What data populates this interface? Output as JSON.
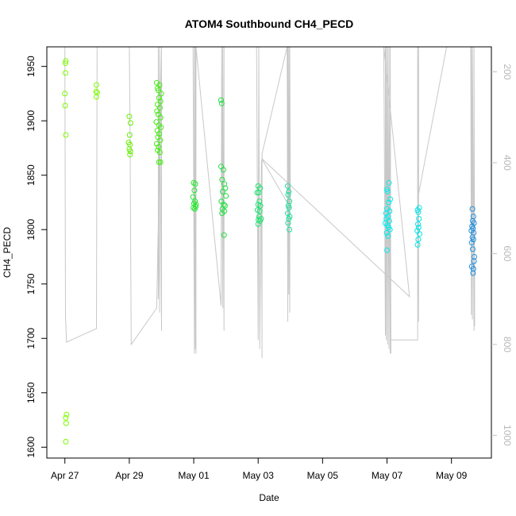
{
  "chart_data": {
    "type": "scatter",
    "title": "ATOM4 Southbound CH4_PECD",
    "xlabel": "Date",
    "ylabel": "CH4_PECD",
    "x_ticks": [
      "Apr 27",
      "Apr 29",
      "May 01",
      "May 03",
      "May 05",
      "May 07",
      "May 09"
    ],
    "x_tick_days": [
      0,
      2,
      4,
      6,
      8,
      10,
      12
    ],
    "xlim_days": [
      -0.56,
      13.24
    ],
    "ylim": [
      1590,
      1968
    ],
    "y_ticks": [
      1600,
      1650,
      1700,
      1750,
      1800,
      1850,
      1900,
      1950
    ],
    "right_axis": {
      "ticks": [
        200,
        400,
        600,
        800,
        1000
      ],
      "lim": [
        1050,
        145
      ],
      "color": "#c0c0c0"
    },
    "points": [
      {
        "d": 0.02,
        "v": 1953,
        "c": "#7cfc00"
      },
      {
        "d": 0.03,
        "v": 1955,
        "c": "#7cfc00"
      },
      {
        "d": 0.02,
        "v": 1944,
        "c": "#7cfc00"
      },
      {
        "d": 0.0,
        "v": 1925,
        "c": "#7cfc00"
      },
      {
        "d": 0.01,
        "v": 1914,
        "c": "#7cfc00"
      },
      {
        "d": 0.03,
        "v": 1887,
        "c": "#7cfc00"
      },
      {
        "d": 0.05,
        "v": 1630,
        "c": "#7cfc00"
      },
      {
        "d": 0.03,
        "v": 1627,
        "c": "#7cfc00"
      },
      {
        "d": 0.04,
        "v": 1622,
        "c": "#7cfc00"
      },
      {
        "d": 0.03,
        "v": 1605,
        "c": "#7cfc00"
      },
      {
        "d": 0.98,
        "v": 1933,
        "c": "#7cfc00"
      },
      {
        "d": 0.97,
        "v": 1927,
        "c": "#7cfc00"
      },
      {
        "d": 1.0,
        "v": 1926,
        "c": "#7cfc00"
      },
      {
        "d": 0.98,
        "v": 1922,
        "c": "#7cfc00"
      },
      {
        "d": 2.0,
        "v": 1904,
        "c": "#66f000"
      },
      {
        "d": 2.04,
        "v": 1898,
        "c": "#66f000"
      },
      {
        "d": 2.01,
        "v": 1887,
        "c": "#66f000"
      },
      {
        "d": 1.98,
        "v": 1880,
        "c": "#66f000"
      },
      {
        "d": 2.02,
        "v": 1878,
        "c": "#66f000"
      },
      {
        "d": 2.0,
        "v": 1874,
        "c": "#66f000"
      },
      {
        "d": 2.03,
        "v": 1872,
        "c": "#66f000"
      },
      {
        "d": 2.02,
        "v": 1869,
        "c": "#66f000"
      },
      {
        "d": 2.85,
        "v": 1935,
        "c": "#44ee10"
      },
      {
        "d": 2.88,
        "v": 1930,
        "c": "#44ee10"
      },
      {
        "d": 2.9,
        "v": 1928,
        "c": "#44ee10"
      },
      {
        "d": 2.94,
        "v": 1933,
        "c": "#44ee10"
      },
      {
        "d": 2.99,
        "v": 1925,
        "c": "#44ee10"
      },
      {
        "d": 2.92,
        "v": 1921,
        "c": "#44ee10"
      },
      {
        "d": 2.97,
        "v": 1918,
        "c": "#44ee10"
      },
      {
        "d": 2.88,
        "v": 1915,
        "c": "#44ee10"
      },
      {
        "d": 2.95,
        "v": 1912,
        "c": "#44ee10"
      },
      {
        "d": 2.86,
        "v": 1909,
        "c": "#44ee10"
      },
      {
        "d": 2.9,
        "v": 1906,
        "c": "#44ee10"
      },
      {
        "d": 2.97,
        "v": 1903,
        "c": "#44ee10"
      },
      {
        "d": 2.84,
        "v": 1899,
        "c": "#44ee10"
      },
      {
        "d": 2.92,
        "v": 1896,
        "c": "#44ee10"
      },
      {
        "d": 2.98,
        "v": 1894,
        "c": "#44ee10"
      },
      {
        "d": 2.87,
        "v": 1891,
        "c": "#44ee10"
      },
      {
        "d": 2.93,
        "v": 1888,
        "c": "#44ee10"
      },
      {
        "d": 2.89,
        "v": 1885,
        "c": "#44ee10"
      },
      {
        "d": 2.96,
        "v": 1882,
        "c": "#44ee10"
      },
      {
        "d": 2.85,
        "v": 1879,
        "c": "#44ee10"
      },
      {
        "d": 2.91,
        "v": 1876,
        "c": "#44ee10"
      },
      {
        "d": 2.88,
        "v": 1873,
        "c": "#44ee10"
      },
      {
        "d": 2.95,
        "v": 1871,
        "c": "#44ee10"
      },
      {
        "d": 2.92,
        "v": 1862,
        "c": "#44ee10"
      },
      {
        "d": 2.97,
        "v": 1862,
        "c": "#44ee10"
      },
      {
        "d": 4.0,
        "v": 1843,
        "c": "#22e82a"
      },
      {
        "d": 4.05,
        "v": 1842,
        "c": "#22e82a"
      },
      {
        "d": 4.02,
        "v": 1836,
        "c": "#22e82a"
      },
      {
        "d": 3.98,
        "v": 1830,
        "c": "#22e82a"
      },
      {
        "d": 4.04,
        "v": 1826,
        "c": "#22e82a"
      },
      {
        "d": 4.01,
        "v": 1824,
        "c": "#22e82a"
      },
      {
        "d": 4.07,
        "v": 1823,
        "c": "#22e82a"
      },
      {
        "d": 3.99,
        "v": 1820,
        "c": "#22e82a"
      },
      {
        "d": 4.03,
        "v": 1819,
        "c": "#22e82a"
      },
      {
        "d": 4.06,
        "v": 1821,
        "c": "#22e82a"
      },
      {
        "d": 4.85,
        "v": 1919,
        "c": "#22e040"
      },
      {
        "d": 4.87,
        "v": 1916,
        "c": "#22e040"
      },
      {
        "d": 4.85,
        "v": 1858,
        "c": "#22e040"
      },
      {
        "d": 4.92,
        "v": 1855,
        "c": "#22e040"
      },
      {
        "d": 4.88,
        "v": 1846,
        "c": "#22e040"
      },
      {
        "d": 4.95,
        "v": 1842,
        "c": "#22e040"
      },
      {
        "d": 4.98,
        "v": 1838,
        "c": "#22e040"
      },
      {
        "d": 4.9,
        "v": 1835,
        "c": "#22e040"
      },
      {
        "d": 5.0,
        "v": 1831,
        "c": "#22e040"
      },
      {
        "d": 4.86,
        "v": 1826,
        "c": "#22e040"
      },
      {
        "d": 4.93,
        "v": 1823,
        "c": "#22e040"
      },
      {
        "d": 4.97,
        "v": 1822,
        "c": "#22e040"
      },
      {
        "d": 4.89,
        "v": 1819,
        "c": "#22e040"
      },
      {
        "d": 4.95,
        "v": 1817,
        "c": "#22e040"
      },
      {
        "d": 4.88,
        "v": 1815,
        "c": "#22e040"
      },
      {
        "d": 4.94,
        "v": 1795,
        "c": "#22e040"
      },
      {
        "d": 6.0,
        "v": 1840,
        "c": "#20e270"
      },
      {
        "d": 6.06,
        "v": 1838,
        "c": "#20e270"
      },
      {
        "d": 6.02,
        "v": 1834,
        "c": "#20e270"
      },
      {
        "d": 5.97,
        "v": 1834,
        "c": "#20e270"
      },
      {
        "d": 6.04,
        "v": 1826,
        "c": "#20e270"
      },
      {
        "d": 6.0,
        "v": 1823,
        "c": "#20e270"
      },
      {
        "d": 6.07,
        "v": 1822,
        "c": "#20e270"
      },
      {
        "d": 5.98,
        "v": 1818,
        "c": "#20e270"
      },
      {
        "d": 6.05,
        "v": 1817,
        "c": "#20e270"
      },
      {
        "d": 6.03,
        "v": 1812,
        "c": "#20e270"
      },
      {
        "d": 6.09,
        "v": 1810,
        "c": "#20e270"
      },
      {
        "d": 6.01,
        "v": 1809,
        "c": "#20e270"
      },
      {
        "d": 6.06,
        "v": 1808,
        "c": "#20e270"
      },
      {
        "d": 6.0,
        "v": 1805,
        "c": "#20e270"
      },
      {
        "d": 6.92,
        "v": 1840,
        "c": "#20e09a"
      },
      {
        "d": 6.95,
        "v": 1835,
        "c": "#20e09a"
      },
      {
        "d": 6.93,
        "v": 1832,
        "c": "#20e09a"
      },
      {
        "d": 6.97,
        "v": 1826,
        "c": "#20e09a"
      },
      {
        "d": 6.94,
        "v": 1822,
        "c": "#20e09a"
      },
      {
        "d": 6.96,
        "v": 1820,
        "c": "#20e09a"
      },
      {
        "d": 6.92,
        "v": 1815,
        "c": "#20e09a"
      },
      {
        "d": 6.98,
        "v": 1812,
        "c": "#20e09a"
      },
      {
        "d": 6.95,
        "v": 1810,
        "c": "#20e09a"
      },
      {
        "d": 6.93,
        "v": 1806,
        "c": "#20e09a"
      },
      {
        "d": 6.97,
        "v": 1800,
        "c": "#20e09a"
      },
      {
        "d": 10.0,
        "v": 1837,
        "c": "#00ecec"
      },
      {
        "d": 10.06,
        "v": 1843,
        "c": "#00ecec"
      },
      {
        "d": 10.02,
        "v": 1835,
        "c": "#00ecec"
      },
      {
        "d": 10.1,
        "v": 1828,
        "c": "#00ecec"
      },
      {
        "d": 10.05,
        "v": 1825,
        "c": "#00ecec"
      },
      {
        "d": 10.0,
        "v": 1819,
        "c": "#00ecec"
      },
      {
        "d": 10.08,
        "v": 1817,
        "c": "#00ecec"
      },
      {
        "d": 9.97,
        "v": 1815,
        "c": "#00ecec"
      },
      {
        "d": 10.03,
        "v": 1812,
        "c": "#00ecec"
      },
      {
        "d": 9.98,
        "v": 1810,
        "c": "#00ecec"
      },
      {
        "d": 10.07,
        "v": 1808,
        "c": "#00ecec"
      },
      {
        "d": 9.95,
        "v": 1806,
        "c": "#00ecec"
      },
      {
        "d": 10.01,
        "v": 1804,
        "c": "#00ecec"
      },
      {
        "d": 10.05,
        "v": 1802,
        "c": "#00ecec"
      },
      {
        "d": 10.09,
        "v": 1800,
        "c": "#00ecec"
      },
      {
        "d": 9.99,
        "v": 1797,
        "c": "#00ecec"
      },
      {
        "d": 10.03,
        "v": 1794,
        "c": "#00ecec"
      },
      {
        "d": 10.0,
        "v": 1781,
        "c": "#00ecec"
      },
      {
        "d": 10.95,
        "v": 1818,
        "c": "#00e4e8"
      },
      {
        "d": 11.0,
        "v": 1820,
        "c": "#00e4e8"
      },
      {
        "d": 10.97,
        "v": 1816,
        "c": "#00e4e8"
      },
      {
        "d": 10.99,
        "v": 1810,
        "c": "#00e4e8"
      },
      {
        "d": 10.96,
        "v": 1805,
        "c": "#00e4e8"
      },
      {
        "d": 10.98,
        "v": 1802,
        "c": "#00e4e8"
      },
      {
        "d": 10.94,
        "v": 1799,
        "c": "#00e4e8"
      },
      {
        "d": 11.01,
        "v": 1796,
        "c": "#00e4e8"
      },
      {
        "d": 10.97,
        "v": 1791,
        "c": "#00e4e8"
      },
      {
        "d": 10.95,
        "v": 1786,
        "c": "#00e4e8"
      },
      {
        "d": 12.65,
        "v": 1819,
        "c": "#1e90e0"
      },
      {
        "d": 12.68,
        "v": 1812,
        "c": "#1e90e0"
      },
      {
        "d": 12.66,
        "v": 1808,
        "c": "#1e90e0"
      },
      {
        "d": 12.7,
        "v": 1806,
        "c": "#1e90e0"
      },
      {
        "d": 12.64,
        "v": 1803,
        "c": "#1e90e0"
      },
      {
        "d": 12.67,
        "v": 1801,
        "c": "#1e90e0"
      },
      {
        "d": 12.62,
        "v": 1799,
        "c": "#1e90e0"
      },
      {
        "d": 12.69,
        "v": 1797,
        "c": "#1e90e0"
      },
      {
        "d": 12.65,
        "v": 1793,
        "c": "#1e90e0"
      },
      {
        "d": 12.68,
        "v": 1791,
        "c": "#1e90e0"
      },
      {
        "d": 12.63,
        "v": 1788,
        "c": "#1e90e0"
      },
      {
        "d": 12.66,
        "v": 1782,
        "c": "#1e90e0"
      },
      {
        "d": 12.71,
        "v": 1775,
        "c": "#1e90e0"
      },
      {
        "d": 12.7,
        "v": 1771,
        "c": "#1e90e0"
      },
      {
        "d": 12.63,
        "v": 1766,
        "c": "#1e90e0"
      },
      {
        "d": 12.68,
        "v": 1764,
        "c": "#1e90e0"
      },
      {
        "d": 12.67,
        "v": 1760,
        "c": "#1e90e0"
      }
    ],
    "altitude_line": [
      [
        0.0,
        145
      ],
      [
        0.02,
        740
      ],
      [
        0.05,
        795
      ],
      [
        0.98,
        765
      ],
      [
        1.0,
        145
      ],
      [
        2.0,
        145
      ],
      [
        2.02,
        300
      ],
      [
        2.06,
        800
      ],
      [
        2.85,
        720
      ],
      [
        3.0,
        145
      ],
      [
        2.9,
        700
      ],
      [
        2.9,
        145
      ],
      [
        2.94,
        730
      ],
      [
        2.94,
        145
      ],
      [
        3.0,
        770
      ],
      [
        3.0,
        145
      ],
      [
        3.98,
        145
      ],
      [
        4.02,
        820
      ],
      [
        4.02,
        145
      ],
      [
        4.05,
        810
      ],
      [
        4.05,
        145
      ],
      [
        4.07,
        820
      ],
      [
        4.07,
        145
      ],
      [
        4.85,
        715
      ],
      [
        4.87,
        145
      ],
      [
        4.9,
        720
      ],
      [
        4.9,
        145
      ],
      [
        4.94,
        770
      ],
      [
        4.94,
        145
      ],
      [
        5.95,
        145
      ],
      [
        6.0,
        790
      ],
      [
        6.02,
        145
      ],
      [
        6.05,
        810
      ],
      [
        6.1,
        395
      ],
      [
        6.12,
        830
      ],
      [
        6.12,
        380
      ],
      [
        6.9,
        145
      ],
      [
        6.92,
        750
      ],
      [
        6.92,
        145
      ],
      [
        6.95,
        690
      ],
      [
        6.95,
        145
      ],
      [
        6.98,
        730
      ],
      [
        6.98,
        145
      ],
      [
        7.0,
        500
      ],
      [
        6.1,
        390
      ],
      [
        10.7,
        695
      ],
      [
        9.9,
        145
      ],
      [
        9.95,
        780
      ],
      [
        9.95,
        145
      ],
      [
        9.98,
        790
      ],
      [
        9.98,
        145
      ],
      [
        10.02,
        800
      ],
      [
        10.02,
        145
      ],
      [
        10.06,
        810
      ],
      [
        10.06,
        145
      ],
      [
        10.1,
        820
      ],
      [
        10.1,
        145
      ],
      [
        10.12,
        820
      ],
      [
        10.1,
        790
      ],
      [
        10.95,
        790
      ],
      [
        10.95,
        145
      ],
      [
        10.98,
        750
      ],
      [
        10.98,
        145
      ],
      [
        10.95,
        480
      ],
      [
        11.85,
        145
      ],
      [
        12.6,
        145
      ],
      [
        12.62,
        735
      ],
      [
        12.62,
        145
      ],
      [
        12.65,
        745
      ],
      [
        12.65,
        145
      ],
      [
        12.7,
        770
      ],
      [
        12.7,
        145
      ],
      [
        12.72,
        690
      ],
      [
        12.72,
        760
      ]
    ]
  }
}
